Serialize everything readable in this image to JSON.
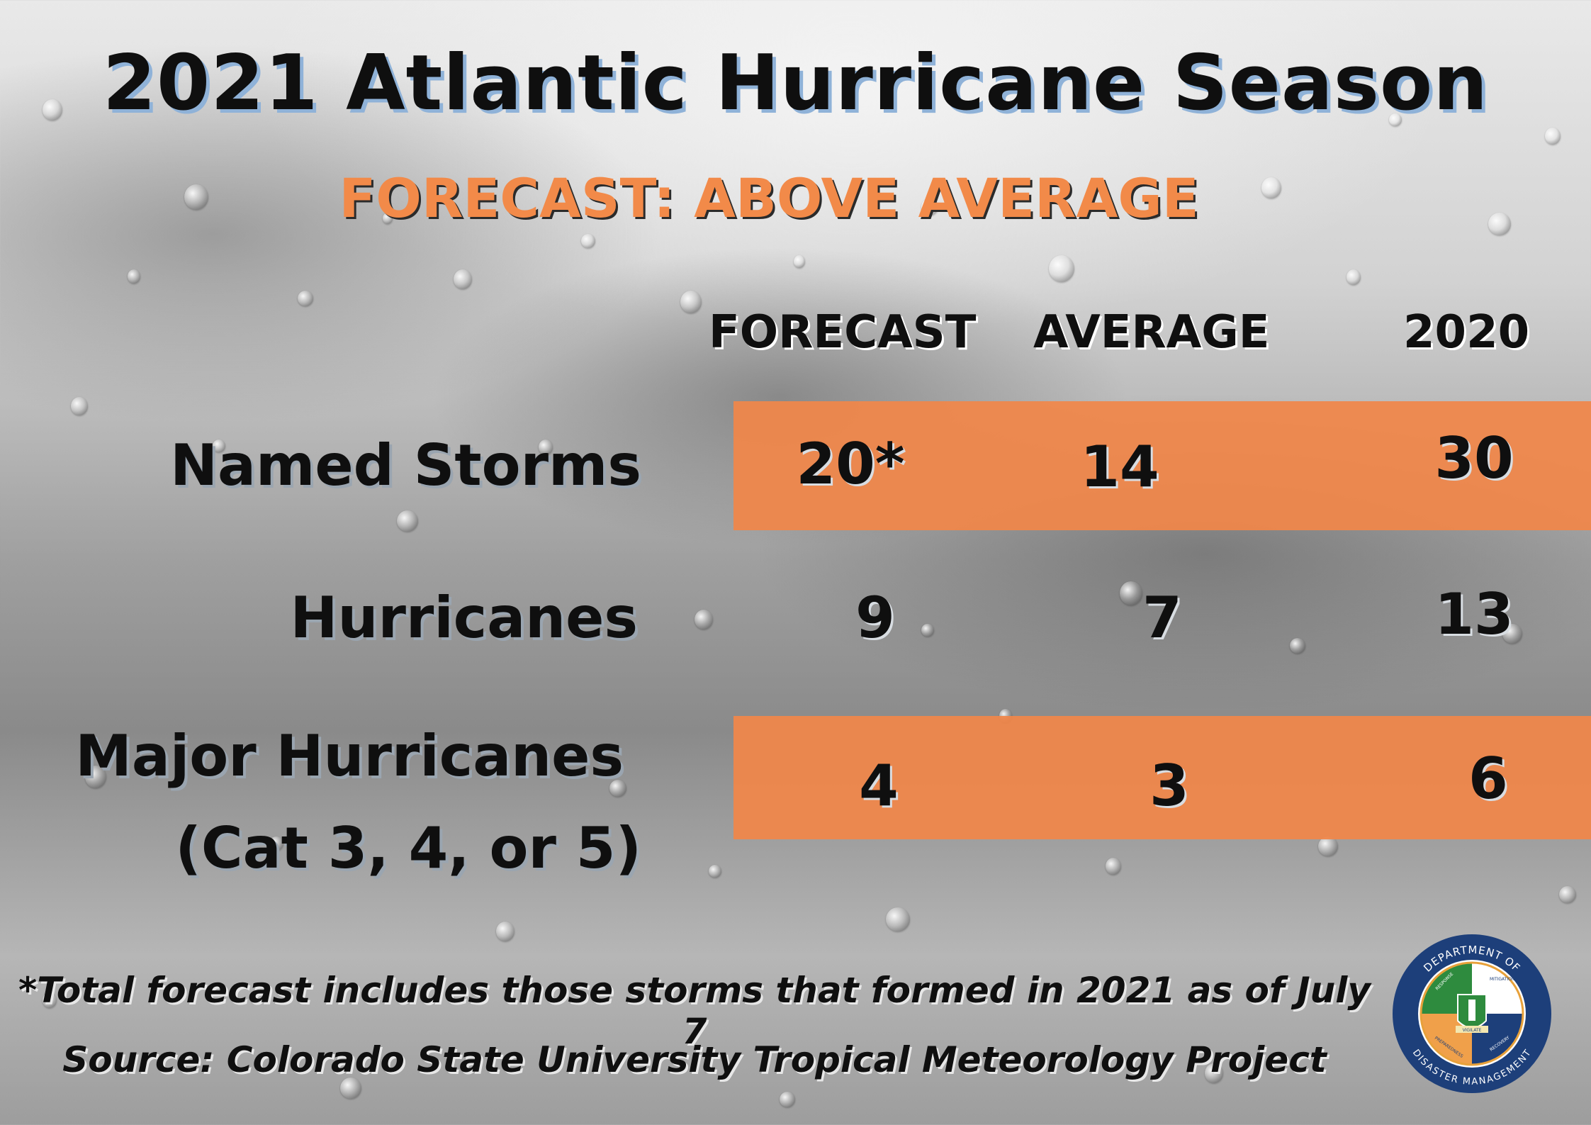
{
  "title": "2021 Atlantic Hurricane Season",
  "subtitle": "FORECAST: ABOVE AVERAGE",
  "columns": [
    "FORECAST",
    "AVERAGE",
    "2020"
  ],
  "rows": [
    {
      "label": "Named Storms",
      "label2": "",
      "values": [
        "20*",
        "14",
        "30"
      ],
      "highlight": true
    },
    {
      "label": "Hurricanes",
      "label2": "",
      "values": [
        "9",
        "7",
        "13"
      ],
      "highlight": false
    },
    {
      "label": "Major Hurricanes",
      "label2": "(Cat 3, 4, or 5)",
      "values": [
        "4",
        "3",
        "6"
      ],
      "highlight": true
    }
  ],
  "footnotes": {
    "note": "*Total forecast includes those storms that formed in 2021 as of July 7",
    "source": "Source: Colorado State University Tropical Meteorology Project"
  },
  "logo": {
    "top_text": "DEPARTMENT OF",
    "bottom_text": "DISASTER MANAGEMENT",
    "quadrants": [
      "RESPONSE",
      "MITIGATION",
      "PREPAREDNESS",
      "RECOVERY"
    ],
    "motto": "VIGILATE",
    "icon": "crest-icon",
    "colors": {
      "ring": "#1d3f7a",
      "response": "#2e8b3e",
      "mitigation": "#ffffff",
      "preparedness": "#f0a04a",
      "recovery": "#1d3f7a"
    }
  },
  "colors": {
    "accent": "#f28a49",
    "band": "#f18649",
    "title_shadow": "#8fb2d8"
  }
}
